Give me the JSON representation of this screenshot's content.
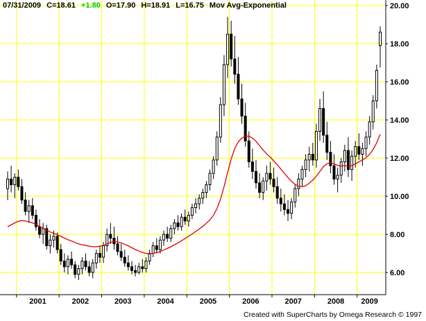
{
  "header": {
    "date": "07/31/2009",
    "close": "C=18.61",
    "change": "+1.80",
    "change_color": "#00c800",
    "open": "O=17.90",
    "high": "H=18.91",
    "low": "L=16.75",
    "indicator": "Mov Avg-Exponential"
  },
  "footer": {
    "credit": "Created with SuperCharts by Omega Research © 1997"
  },
  "chart_data": {
    "type": "candlestick",
    "frequency": "monthly",
    "start_month": "2000-10",
    "title": "",
    "legend": "Mov Avg-Exponential",
    "grid": true,
    "legend_position": "top-left-header",
    "ylim": [
      4.85,
      20.15
    ],
    "y_ticks": [
      20,
      18,
      16,
      14,
      12,
      10,
      8,
      6
    ],
    "y_tick_labels": [
      "20.00",
      "18.00",
      "16.00",
      "14.00",
      "12.00",
      "10.00",
      "8.00",
      "6.00"
    ],
    "x_tick_labels": [
      "2001",
      "2002",
      "2003",
      "2004",
      "2005",
      "2006",
      "2007",
      "2008",
      "2009"
    ],
    "colors": {
      "grid": "#ffff00",
      "candle": "#000000",
      "ma": "#dd0000",
      "axis": "#000000",
      "background": "#ffffff"
    },
    "last_bar": {
      "date": "07/31/2009",
      "open": 17.9,
      "high": 18.91,
      "low": 16.75,
      "close": 18.61,
      "change": 1.8
    },
    "ohlc": [
      [
        10.4,
        11.3,
        9.8,
        10.9
      ],
      [
        10.9,
        11.6,
        10.2,
        10.6
      ],
      [
        10.6,
        11.2,
        9.9,
        11.0
      ],
      [
        11.0,
        11.4,
        10.3,
        10.5
      ],
      [
        10.5,
        10.9,
        9.6,
        9.8
      ],
      [
        9.8,
        10.2,
        9.0,
        9.2
      ],
      [
        9.2,
        9.8,
        8.6,
        9.5
      ],
      [
        9.5,
        9.9,
        8.8,
        9.0
      ],
      [
        9.0,
        9.3,
        8.2,
        8.4
      ],
      [
        8.4,
        8.8,
        7.8,
        8.0
      ],
      [
        8.0,
        8.6,
        7.5,
        8.3
      ],
      [
        8.3,
        8.5,
        7.2,
        7.4
      ],
      [
        7.4,
        8.0,
        7.0,
        7.7
      ],
      [
        7.7,
        8.2,
        7.3,
        7.9
      ],
      [
        7.9,
        8.1,
        7.0,
        7.2
      ],
      [
        7.2,
        7.5,
        6.4,
        6.6
      ],
      [
        6.6,
        7.0,
        6.0,
        6.3
      ],
      [
        6.3,
        6.9,
        5.9,
        6.7
      ],
      [
        6.7,
        7.1,
        6.2,
        6.4
      ],
      [
        6.4,
        6.6,
        5.7,
        5.9
      ],
      [
        5.9,
        6.4,
        5.6,
        6.2
      ],
      [
        6.2,
        6.8,
        5.9,
        6.6
      ],
      [
        6.6,
        7.0,
        6.1,
        6.3
      ],
      [
        6.3,
        6.6,
        5.8,
        6.0
      ],
      [
        6.0,
        6.7,
        5.7,
        6.5
      ],
      [
        6.5,
        7.2,
        6.2,
        7.0
      ],
      [
        7.0,
        7.4,
        6.5,
        6.8
      ],
      [
        6.8,
        7.6,
        6.5,
        7.4
      ],
      [
        7.4,
        8.3,
        7.1,
        8.0
      ],
      [
        8.0,
        8.6,
        7.5,
        7.8
      ],
      [
        7.8,
        8.4,
        7.2,
        7.5
      ],
      [
        7.5,
        7.9,
        6.9,
        7.1
      ],
      [
        7.1,
        7.5,
        6.6,
        6.8
      ],
      [
        6.8,
        7.2,
        6.3,
        6.5
      ],
      [
        6.5,
        6.9,
        6.1,
        6.3
      ],
      [
        6.3,
        6.6,
        5.9,
        6.1
      ],
      [
        6.1,
        6.4,
        5.8,
        6.0
      ],
      [
        6.0,
        6.5,
        5.9,
        6.3
      ],
      [
        6.3,
        6.7,
        6.0,
        6.2
      ],
      [
        6.2,
        6.8,
        6.0,
        6.6
      ],
      [
        6.6,
        7.2,
        6.4,
        7.0
      ],
      [
        7.0,
        7.6,
        6.8,
        7.4
      ],
      [
        7.4,
        7.8,
        7.0,
        7.2
      ],
      [
        7.2,
        7.9,
        7.0,
        7.7
      ],
      [
        7.7,
        8.2,
        7.4,
        8.0
      ],
      [
        8.0,
        8.4,
        7.6,
        7.8
      ],
      [
        7.8,
        8.5,
        7.6,
        8.3
      ],
      [
        8.3,
        8.8,
        8.0,
        8.6
      ],
      [
        8.6,
        9.0,
        8.2,
        8.4
      ],
      [
        8.4,
        9.1,
        8.2,
        8.9
      ],
      [
        8.9,
        9.3,
        8.5,
        8.7
      ],
      [
        8.7,
        9.2,
        8.4,
        9.0
      ],
      [
        9.0,
        9.6,
        8.8,
        9.4
      ],
      [
        9.4,
        9.9,
        9.1,
        9.6
      ],
      [
        9.6,
        10.1,
        9.3,
        9.9
      ],
      [
        9.9,
        10.4,
        9.6,
        10.2
      ],
      [
        10.2,
        10.8,
        9.9,
        10.6
      ],
      [
        10.6,
        11.4,
        10.3,
        11.2
      ],
      [
        11.2,
        12.1,
        10.9,
        11.9
      ],
      [
        11.9,
        13.4,
        11.6,
        13.1
      ],
      [
        13.1,
        15.2,
        12.8,
        14.8
      ],
      [
        14.8,
        17.4,
        14.2,
        16.9
      ],
      [
        16.9,
        19.4,
        16.2,
        18.5
      ],
      [
        18.5,
        19.2,
        16.8,
        17.2
      ],
      [
        17.2,
        18.4,
        15.9,
        16.4
      ],
      [
        16.4,
        17.3,
        14.8,
        15.1
      ],
      [
        15.1,
        15.9,
        13.8,
        14.2
      ],
      [
        14.2,
        14.9,
        12.6,
        12.9
      ],
      [
        12.9,
        13.4,
        11.5,
        11.8
      ],
      [
        11.8,
        12.5,
        10.9,
        11.3
      ],
      [
        11.3,
        11.9,
        10.4,
        10.7
      ],
      [
        10.7,
        11.2,
        9.9,
        10.2
      ],
      [
        10.2,
        11.0,
        9.8,
        10.8
      ],
      [
        10.8,
        11.6,
        10.3,
        11.2
      ],
      [
        11.2,
        11.8,
        10.6,
        10.9
      ],
      [
        10.9,
        11.5,
        10.2,
        10.5
      ],
      [
        10.5,
        11.0,
        9.6,
        9.9
      ],
      [
        9.9,
        10.4,
        9.2,
        9.6
      ],
      [
        9.6,
        10.1,
        9.0,
        9.3
      ],
      [
        9.3,
        9.8,
        8.7,
        9.1
      ],
      [
        9.1,
        9.9,
        8.8,
        9.7
      ],
      [
        9.7,
        10.6,
        9.4,
        10.4
      ],
      [
        10.4,
        11.2,
        10.0,
        10.9
      ],
      [
        10.9,
        11.6,
        10.5,
        11.4
      ],
      [
        11.4,
        12.2,
        11.0,
        11.9
      ],
      [
        11.9,
        12.6,
        11.3,
        12.2
      ],
      [
        12.2,
        12.8,
        11.6,
        11.9
      ],
      [
        11.9,
        13.8,
        11.5,
        13.4
      ],
      [
        13.4,
        15.1,
        12.9,
        14.6
      ],
      [
        14.6,
        15.5,
        12.8,
        13.2
      ],
      [
        13.2,
        13.9,
        11.9,
        12.3
      ],
      [
        12.3,
        12.9,
        11.2,
        11.6
      ],
      [
        11.6,
        12.2,
        10.6,
        10.9
      ],
      [
        10.9,
        11.5,
        10.2,
        11.1
      ],
      [
        11.1,
        12.0,
        10.7,
        11.8
      ],
      [
        11.8,
        12.7,
        11.3,
        12.4
      ],
      [
        12.4,
        13.1,
        11.0,
        11.4
      ],
      [
        11.4,
        12.4,
        10.8,
        12.1
      ],
      [
        12.1,
        12.9,
        11.5,
        12.6
      ],
      [
        12.6,
        13.3,
        11.9,
        12.2
      ],
      [
        12.2,
        12.8,
        11.6,
        12.5
      ],
      [
        12.5,
        13.4,
        12.1,
        13.1
      ],
      [
        13.1,
        14.2,
        12.7,
        13.9
      ],
      [
        13.9,
        15.3,
        13.5,
        15.0
      ],
      [
        15.0,
        16.9,
        14.6,
        16.6
      ],
      [
        17.9,
        18.91,
        16.75,
        18.61
      ]
    ],
    "ema": [
      8.4,
      8.5,
      8.6,
      8.68,
      8.72,
      8.7,
      8.65,
      8.6,
      8.52,
      8.42,
      8.32,
      8.22,
      8.12,
      8.05,
      7.98,
      7.9,
      7.8,
      7.72,
      7.65,
      7.57,
      7.5,
      7.45,
      7.42,
      7.38,
      7.35,
      7.35,
      7.38,
      7.42,
      7.5,
      7.58,
      7.62,
      7.6,
      7.55,
      7.48,
      7.4,
      7.3,
      7.2,
      7.12,
      7.05,
      7.0,
      6.98,
      7.0,
      7.04,
      7.1,
      7.18,
      7.26,
      7.35,
      7.45,
      7.55,
      7.66,
      7.78,
      7.9,
      8.02,
      8.15,
      8.28,
      8.42,
      8.58,
      8.76,
      9.0,
      9.35,
      9.85,
      10.5,
      11.25,
      11.95,
      12.5,
      12.85,
      13.05,
      13.15,
      13.15,
      13.05,
      12.88,
      12.65,
      12.42,
      12.22,
      12.05,
      11.85,
      11.65,
      11.42,
      11.2,
      10.98,
      10.78,
      10.62,
      10.52,
      10.5,
      10.55,
      10.68,
      10.85,
      11.05,
      11.3,
      11.55,
      11.7,
      11.75,
      11.7,
      11.62,
      11.58,
      11.6,
      11.58,
      11.6,
      11.7,
      11.8,
      11.9,
      12.02,
      12.2,
      12.45,
      12.8,
      13.25
    ]
  }
}
